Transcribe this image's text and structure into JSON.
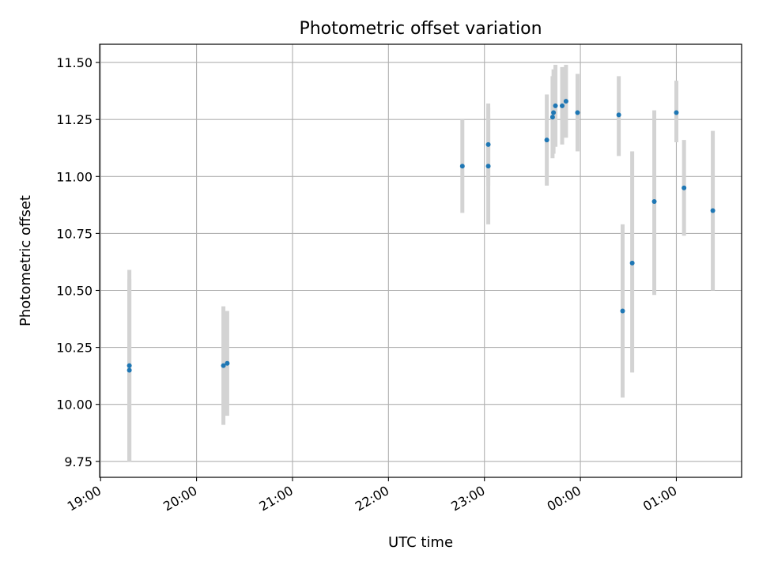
{
  "chart_data": {
    "type": "scatter",
    "title": "Photometric offset variation",
    "xlabel": "UTC time",
    "ylabel": "Photometric offset",
    "x_unit": "UTC hours (values past 24 are after midnight)",
    "xlim": [
      18.99,
      25.68
    ],
    "ylim": [
      9.68,
      11.58
    ],
    "x_ticks": [
      {
        "value": 19,
        "label": "19:00"
      },
      {
        "value": 20,
        "label": "20:00"
      },
      {
        "value": 21,
        "label": "21:00"
      },
      {
        "value": 22,
        "label": "22:00"
      },
      {
        "value": 23,
        "label": "23:00"
      },
      {
        "value": 24,
        "label": "00:00"
      },
      {
        "value": 25,
        "label": "01:00"
      }
    ],
    "y_ticks": [
      {
        "value": 9.75,
        "label": "9.75"
      },
      {
        "value": 10.0,
        "label": "10.00"
      },
      {
        "value": 10.25,
        "label": "10.25"
      },
      {
        "value": 10.5,
        "label": "10.50"
      },
      {
        "value": 10.75,
        "label": "10.75"
      },
      {
        "value": 11.0,
        "label": "11.00"
      },
      {
        "value": 11.25,
        "label": "11.25"
      },
      {
        "value": 11.5,
        "label": "11.50"
      }
    ],
    "grid": true,
    "marker_color": "#1f77b4",
    "errorbar_color": "#d3d3d3",
    "points": [
      {
        "x": 19.3,
        "y": 10.17,
        "ylow": 9.75,
        "yhigh": 10.59
      },
      {
        "x": 19.3,
        "y": 10.15,
        "ylow": 9.75,
        "yhigh": 10.55
      },
      {
        "x": 20.28,
        "y": 10.17,
        "ylow": 9.91,
        "yhigh": 10.43
      },
      {
        "x": 20.32,
        "y": 10.18,
        "ylow": 9.95,
        "yhigh": 10.41
      },
      {
        "x": 22.77,
        "y": 11.045,
        "ylow": 10.84,
        "yhigh": 11.25
      },
      {
        "x": 23.04,
        "y": 11.14,
        "ylow": 10.96,
        "yhigh": 11.32
      },
      {
        "x": 23.04,
        "y": 11.045,
        "ylow": 10.79,
        "yhigh": 11.3
      },
      {
        "x": 23.65,
        "y": 11.16,
        "ylow": 10.96,
        "yhigh": 11.36
      },
      {
        "x": 23.71,
        "y": 11.26,
        "ylow": 11.08,
        "yhigh": 11.44
      },
      {
        "x": 23.72,
        "y": 11.28,
        "ylow": 11.1,
        "yhigh": 11.47
      },
      {
        "x": 23.74,
        "y": 11.31,
        "ylow": 11.13,
        "yhigh": 11.49
      },
      {
        "x": 23.81,
        "y": 11.31,
        "ylow": 11.14,
        "yhigh": 11.48
      },
      {
        "x": 23.85,
        "y": 11.33,
        "ylow": 11.17,
        "yhigh": 11.49
      },
      {
        "x": 23.97,
        "y": 11.28,
        "ylow": 11.11,
        "yhigh": 11.45
      },
      {
        "x": 24.4,
        "y": 11.27,
        "ylow": 11.09,
        "yhigh": 11.44
      },
      {
        "x": 24.44,
        "y": 10.41,
        "ylow": 10.03,
        "yhigh": 10.79
      },
      {
        "x": 24.54,
        "y": 10.62,
        "ylow": 10.14,
        "yhigh": 11.11
      },
      {
        "x": 24.77,
        "y": 10.89,
        "ylow": 10.48,
        "yhigh": 11.29
      },
      {
        "x": 25.0,
        "y": 11.28,
        "ylow": 11.15,
        "yhigh": 11.42
      },
      {
        "x": 25.08,
        "y": 10.95,
        "ylow": 10.74,
        "yhigh": 11.16
      },
      {
        "x": 25.38,
        "y": 10.85,
        "ylow": 10.5,
        "yhigh": 11.2
      }
    ]
  }
}
